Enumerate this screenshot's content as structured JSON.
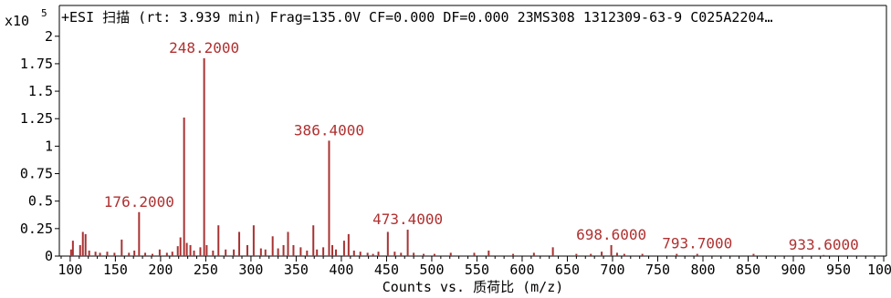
{
  "header": {
    "scale_base": "x10",
    "scale_exp": "5",
    "title": "+ESI 扫描 (rt: 3.939 min) Frag=135.0V CF=0.000 DF=0.000 23MS308 1312309-63-9 C025A2204…"
  },
  "colors": {
    "peak": "#a83232",
    "label": "#b03030",
    "axis": "#000000"
  },
  "chart_data": {
    "type": "bar",
    "title": "+ESI 扫描 (rt: 3.939 min) Frag=135.0V CF=0.000 DF=0.000 23MS308 1312309-63-9 C025A2204…",
    "xlabel": "Counts vs. 质荷比 (m/z)",
    "ylabel": "",
    "xlim": [
      88,
      1003
    ],
    "ylim": [
      0,
      2.28
    ],
    "y_scale": "x10^5",
    "x_ticks": [
      100,
      150,
      200,
      250,
      300,
      350,
      400,
      450,
      500,
      550,
      600,
      650,
      700,
      750,
      800,
      850,
      900,
      950,
      1000
    ],
    "y_ticks": [
      {
        "value": 0,
        "label": "0"
      },
      {
        "value": 0.25,
        "label": "0.25"
      },
      {
        "value": 0.5,
        "label": "0.5"
      },
      {
        "value": 0.75,
        "label": "0.75"
      },
      {
        "value": 1,
        "label": "1"
      },
      {
        "value": 1.25,
        "label": "1.25"
      },
      {
        "value": 1.5,
        "label": "1.5"
      },
      {
        "value": 1.75,
        "label": "1.75"
      },
      {
        "value": 2,
        "label": "2"
      }
    ],
    "grid": false,
    "peaks": [
      {
        "mz": 101,
        "value": 0.06
      },
      {
        "mz": 103,
        "value": 0.14
      },
      {
        "mz": 111,
        "value": 0.1
      },
      {
        "mz": 114,
        "value": 0.22
      },
      {
        "mz": 117,
        "value": 0.2
      },
      {
        "mz": 121,
        "value": 0.05
      },
      {
        "mz": 128,
        "value": 0.04
      },
      {
        "mz": 133,
        "value": 0.03
      },
      {
        "mz": 141,
        "value": 0.04
      },
      {
        "mz": 149,
        "value": 0.03
      },
      {
        "mz": 157,
        "value": 0.15
      },
      {
        "mz": 165,
        "value": 0.03
      },
      {
        "mz": 171,
        "value": 0.05
      },
      {
        "mz": 176.2,
        "value": 0.4
      },
      {
        "mz": 183,
        "value": 0.03
      },
      {
        "mz": 191,
        "value": 0.02
      },
      {
        "mz": 199,
        "value": 0.06
      },
      {
        "mz": 207,
        "value": 0.03
      },
      {
        "mz": 213,
        "value": 0.04
      },
      {
        "mz": 219,
        "value": 0.09
      },
      {
        "mz": 222,
        "value": 0.17
      },
      {
        "mz": 226,
        "value": 1.26
      },
      {
        "mz": 229,
        "value": 0.12
      },
      {
        "mz": 233,
        "value": 0.1
      },
      {
        "mz": 237,
        "value": 0.05
      },
      {
        "mz": 244,
        "value": 0.08
      },
      {
        "mz": 248.2,
        "value": 1.8
      },
      {
        "mz": 251,
        "value": 0.1
      },
      {
        "mz": 258,
        "value": 0.05
      },
      {
        "mz": 264,
        "value": 0.28
      },
      {
        "mz": 272,
        "value": 0.06
      },
      {
        "mz": 281,
        "value": 0.06
      },
      {
        "mz": 287,
        "value": 0.22
      },
      {
        "mz": 296,
        "value": 0.1
      },
      {
        "mz": 303,
        "value": 0.28
      },
      {
        "mz": 311,
        "value": 0.07
      },
      {
        "mz": 316,
        "value": 0.06
      },
      {
        "mz": 324,
        "value": 0.18
      },
      {
        "mz": 330,
        "value": 0.07
      },
      {
        "mz": 336,
        "value": 0.1
      },
      {
        "mz": 341,
        "value": 0.22
      },
      {
        "mz": 347,
        "value": 0.1
      },
      {
        "mz": 355,
        "value": 0.08
      },
      {
        "mz": 362,
        "value": 0.05
      },
      {
        "mz": 369,
        "value": 0.28
      },
      {
        "mz": 373,
        "value": 0.06
      },
      {
        "mz": 380,
        "value": 0.08
      },
      {
        "mz": 386.4,
        "value": 1.05
      },
      {
        "mz": 390,
        "value": 0.1
      },
      {
        "mz": 394,
        "value": 0.06
      },
      {
        "mz": 403,
        "value": 0.14
      },
      {
        "mz": 408,
        "value": 0.2
      },
      {
        "mz": 414,
        "value": 0.05
      },
      {
        "mz": 421,
        "value": 0.04
      },
      {
        "mz": 429,
        "value": 0.03
      },
      {
        "mz": 435,
        "value": 0.02
      },
      {
        "mz": 441,
        "value": 0.04
      },
      {
        "mz": 451.4,
        "value": 0.22
      },
      {
        "mz": 459,
        "value": 0.04
      },
      {
        "mz": 466,
        "value": 0.03
      },
      {
        "mz": 473.4,
        "value": 0.24
      },
      {
        "mz": 480,
        "value": 0.03
      },
      {
        "mz": 491,
        "value": 0.02
      },
      {
        "mz": 503,
        "value": 0.02
      },
      {
        "mz": 521,
        "value": 0.03
      },
      {
        "mz": 547,
        "value": 0.03
      },
      {
        "mz": 563,
        "value": 0.05
      },
      {
        "mz": 590,
        "value": 0.02
      },
      {
        "mz": 613,
        "value": 0.03
      },
      {
        "mz": 634,
        "value": 0.08
      },
      {
        "mz": 660,
        "value": 0.02
      },
      {
        "mz": 676,
        "value": 0.02
      },
      {
        "mz": 688,
        "value": 0.04
      },
      {
        "mz": 698.6,
        "value": 0.1
      },
      {
        "mz": 705,
        "value": 0.03
      },
      {
        "mz": 713,
        "value": 0.02
      },
      {
        "mz": 733,
        "value": 0.02
      },
      {
        "mz": 771,
        "value": 0.02
      },
      {
        "mz": 793.7,
        "value": 0.02
      },
      {
        "mz": 856,
        "value": 0.02
      },
      {
        "mz": 933.6,
        "value": 0.01
      }
    ],
    "annotations": [
      {
        "label": "248.2000",
        "mz": 248.2,
        "value": 1.8
      },
      {
        "label": "386.4000",
        "mz": 386.4,
        "value": 1.05
      },
      {
        "label": "176.2000",
        "mz": 176.2,
        "value": 0.4
      },
      {
        "label": "473.4000",
        "mz": 473.4,
        "value": 0.24
      },
      {
        "label": "698.6000",
        "mz": 698.6,
        "value": 0.1
      },
      {
        "label": "793.7000",
        "mz": 793.7,
        "value": 0.02
      },
      {
        "label": "933.6000",
        "mz": 933.6,
        "value": 0.01
      }
    ]
  }
}
